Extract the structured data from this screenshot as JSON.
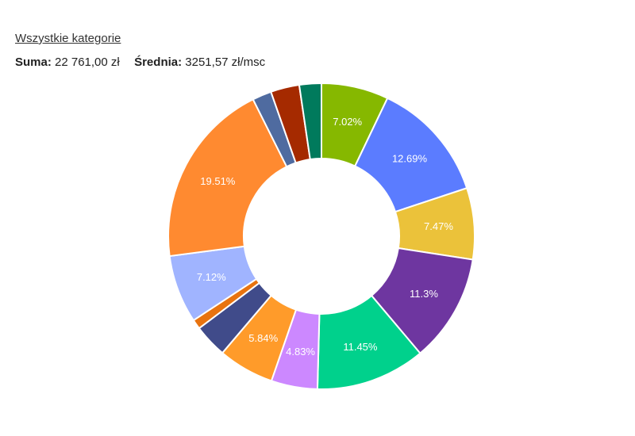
{
  "header": {
    "category_link": "Wszystkie kategorie",
    "sum_label": "Suma:",
    "sum_value": "22 761,00 zł",
    "avg_label": "Średnia:",
    "avg_value": "3251,57 zł/msc"
  },
  "chart_data": {
    "type": "pie",
    "donut": true,
    "values": [
      7.02,
      12.69,
      7.47,
      11.3,
      11.45,
      4.83,
      5.84,
      3.5,
      1.0,
      7.12,
      19.51,
      2.0,
      3.0,
      2.3
    ],
    "labels": [
      "7.02%",
      "12.69%",
      "7.47%",
      "11.3%",
      "11.45%",
      "4.83%",
      "5.84%",
      "",
      "",
      "7.12%",
      "19.51%",
      "",
      "",
      ""
    ],
    "colors": [
      "#86b800",
      "#5b7cff",
      "#ebc23a",
      "#6e36a0",
      "#00d18c",
      "#cc88ff",
      "#ff9b2a",
      "#404b8a",
      "#e8730f",
      "#a0b4ff",
      "#ff8a30",
      "#4f6ba0",
      "#a52a00",
      "#007a5c"
    ]
  }
}
